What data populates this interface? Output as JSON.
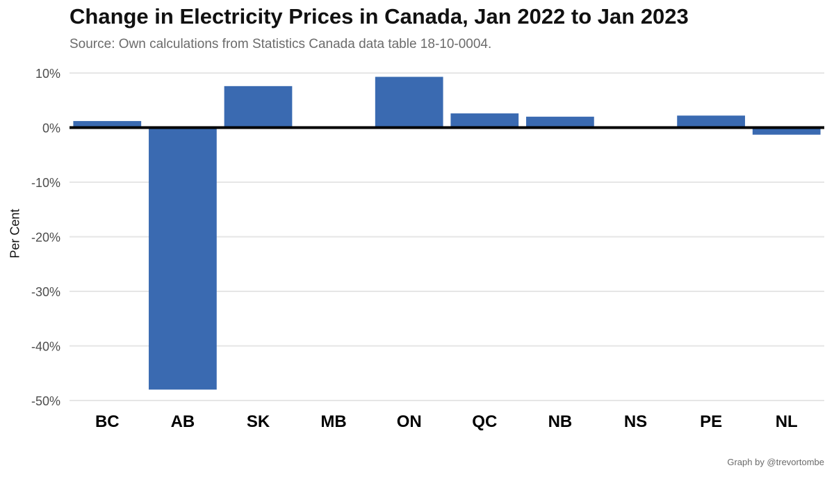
{
  "chart_data": {
    "type": "bar",
    "title": "Change in Electricity Prices in Canada, Jan 2022 to Jan 2023",
    "subtitle": "Source: Own calculations from Statistics Canada data table 18-10-0004.",
    "caption": "Graph by @trevortombe",
    "ylabel": "Per Cent",
    "xlabel": "",
    "categories": [
      "BC",
      "AB",
      "SK",
      "MB",
      "ON",
      "QC",
      "NB",
      "NS",
      "PE",
      "NL"
    ],
    "values": [
      1.2,
      -48.0,
      7.6,
      0.0,
      9.3,
      2.6,
      2.0,
      0.0,
      2.2,
      -1.3
    ],
    "ylim": [
      -50,
      10
    ],
    "yticks": [
      10,
      0,
      -10,
      -20,
      -30,
      -40,
      -50
    ],
    "ytick_labels": [
      "10%",
      "0%",
      "-10%",
      "-20%",
      "-30%",
      "-40%",
      "-50%"
    ],
    "grid": true,
    "bar_color": "#3a6ab1",
    "zero_line_color": "#000000"
  }
}
